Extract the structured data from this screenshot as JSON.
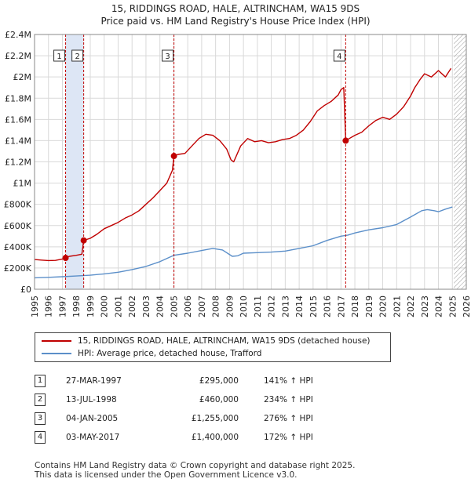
{
  "header": {
    "title_line1": "15, RIDDINGS ROAD, HALE, ALTRINCHAM, WA15 9DS",
    "title_line2": "Price paid vs. HM Land Registry's House Price Index (HPI)"
  },
  "colors": {
    "property": "#c00000",
    "hpi": "#5b8fc9",
    "shade": "#dde6f5",
    "grid": "#d9d9d9",
    "marker_line": "#c00000",
    "hatch": "#999999"
  },
  "chart_data": {
    "type": "line",
    "title": "15, RIDDINGS ROAD, HALE, ALTRINCHAM, WA15 9DS",
    "subtitle": "Price paid vs. HM Land Registry's House Price Index (HPI)",
    "xlabel": "",
    "ylabel": "",
    "xlim": [
      1995,
      2026
    ],
    "ylim": [
      0,
      2400000
    ],
    "y_ticks": [
      0,
      200000,
      400000,
      600000,
      800000,
      1000000,
      1200000,
      1400000,
      1600000,
      1800000,
      2000000,
      2200000,
      2400000
    ],
    "y_tick_labels": [
      "£0",
      "£200K",
      "£400K",
      "£600K",
      "£800K",
      "£1M",
      "£1.2M",
      "£1.4M",
      "£1.6M",
      "£1.8M",
      "£2M",
      "£2.2M",
      "£2.4M"
    ],
    "x_ticks": [
      1995,
      1996,
      1997,
      1998,
      1999,
      2000,
      2001,
      2002,
      2003,
      2004,
      2005,
      2006,
      2007,
      2008,
      2009,
      2010,
      2011,
      2012,
      2013,
      2014,
      2015,
      2016,
      2017,
      2018,
      2019,
      2020,
      2021,
      2022,
      2023,
      2024,
      2025,
      2026
    ],
    "x_tick_labels": [
      "1995",
      "1996",
      "1997",
      "1998",
      "1999",
      "2000",
      "2001",
      "2002",
      "2003",
      "2004",
      "2005",
      "2006",
      "2007",
      "2008",
      "2009",
      "2010",
      "2011",
      "2012",
      "2013",
      "2014",
      "2015",
      "2016",
      "2017",
      "2018",
      "2019",
      "2020",
      "2021",
      "2022",
      "2023",
      "2024",
      "2025",
      "2026"
    ],
    "grid": true,
    "shaded_periods": [
      [
        1997.23,
        1998.53
      ]
    ],
    "projection_start": 2025.1,
    "series": [
      {
        "name": "15, RIDDINGS ROAD, HALE, ALTRINCHAM, WA15 9DS (detached house)",
        "x": [
          1995.0,
          1995.5,
          1996.0,
          1996.5,
          1997.0,
          1997.23,
          1997.5,
          1998.0,
          1998.4,
          1998.53,
          1999.0,
          1999.5,
          2000.0,
          2000.5,
          2001.0,
          2001.5,
          2002.0,
          2002.5,
          2003.0,
          2003.5,
          2004.0,
          2004.5,
          2004.9,
          2005.01,
          2005.3,
          2005.8,
          2006.3,
          2006.8,
          2007.3,
          2007.8,
          2008.3,
          2008.8,
          2009.1,
          2009.3,
          2009.8,
          2010.3,
          2010.8,
          2011.3,
          2011.8,
          2012.3,
          2012.8,
          2013.3,
          2013.8,
          2014.3,
          2014.8,
          2015.3,
          2015.8,
          2016.3,
          2016.8,
          2017.0,
          2017.2,
          2017.34,
          2017.6,
          2018.0,
          2018.5,
          2019.0,
          2019.5,
          2020.0,
          2020.5,
          2021.0,
          2021.5,
          2022.0,
          2022.3,
          2022.7,
          2023.0,
          2023.5,
          2024.0,
          2024.5,
          2024.9
        ],
        "values": [
          280000,
          275000,
          270000,
          272000,
          285000,
          295000,
          310000,
          320000,
          330000,
          460000,
          480000,
          520000,
          570000,
          600000,
          630000,
          670000,
          700000,
          740000,
          800000,
          860000,
          930000,
          1000000,
          1120000,
          1255000,
          1270000,
          1280000,
          1350000,
          1420000,
          1460000,
          1450000,
          1400000,
          1320000,
          1220000,
          1200000,
          1350000,
          1420000,
          1390000,
          1400000,
          1380000,
          1390000,
          1410000,
          1420000,
          1450000,
          1500000,
          1580000,
          1680000,
          1730000,
          1770000,
          1830000,
          1880000,
          1900000,
          1400000,
          1420000,
          1450000,
          1480000,
          1540000,
          1590000,
          1620000,
          1600000,
          1650000,
          1720000,
          1820000,
          1900000,
          1980000,
          2030000,
          2000000,
          2060000,
          2000000,
          2080000
        ]
      },
      {
        "name": "HPI: Average price, detached house, Trafford",
        "x": [
          1995.0,
          1996.0,
          1997.0,
          1998.0,
          1999.0,
          2000.0,
          2001.0,
          2002.0,
          2003.0,
          2004.0,
          2005.0,
          2006.0,
          2007.0,
          2007.8,
          2008.5,
          2009.2,
          2009.6,
          2010.0,
          2011.0,
          2012.0,
          2013.0,
          2014.0,
          2015.0,
          2016.0,
          2017.0,
          2017.5,
          2018.0,
          2019.0,
          2020.0,
          2021.0,
          2022.0,
          2022.8,
          2023.2,
          2023.7,
          2024.0,
          2024.5,
          2025.0
        ],
        "values": [
          108000,
          112000,
          118000,
          125000,
          132000,
          145000,
          160000,
          185000,
          215000,
          260000,
          320000,
          340000,
          365000,
          385000,
          370000,
          310000,
          315000,
          340000,
          345000,
          350000,
          360000,
          385000,
          410000,
          460000,
          500000,
          510000,
          530000,
          560000,
          580000,
          610000,
          680000,
          740000,
          750000,
          740000,
          730000,
          755000,
          775000
        ]
      }
    ],
    "sales": [
      {
        "num": "1",
        "x": 1997.23,
        "value": 295000
      },
      {
        "num": "2",
        "x": 1998.53,
        "value": 460000
      },
      {
        "num": "3",
        "x": 2005.01,
        "value": 1255000
      },
      {
        "num": "4",
        "x": 2017.34,
        "value": 1400000
      }
    ]
  },
  "legend": {
    "property": "15, RIDDINGS ROAD, HALE, ALTRINCHAM, WA15 9DS (detached house)",
    "hpi": "HPI: Average price, detached house, Trafford"
  },
  "sales_table": [
    {
      "num": "1",
      "date": "27-MAR-1997",
      "price": "£295,000",
      "hpi": "141% ↑ HPI"
    },
    {
      "num": "2",
      "date": "13-JUL-1998",
      "price": "£460,000",
      "hpi": "234% ↑ HPI"
    },
    {
      "num": "3",
      "date": "04-JAN-2005",
      "price": "£1,255,000",
      "hpi": "276% ↑ HPI"
    },
    {
      "num": "4",
      "date": "03-MAY-2017",
      "price": "£1,400,000",
      "hpi": "172% ↑ HPI"
    }
  ],
  "footer": {
    "line1": "Contains HM Land Registry data © Crown copyright and database right 2025.",
    "line2": "This data is licensed under the Open Government Licence v3.0."
  }
}
